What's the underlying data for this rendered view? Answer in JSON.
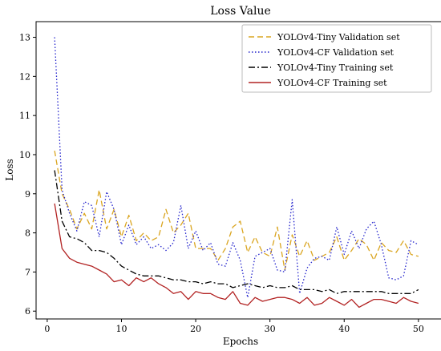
{
  "chart_data": {
    "type": "line",
    "title": "Loss Value",
    "xlabel": "Epochs",
    "ylabel": "Loss",
    "xlim": [
      -1.5,
      52.5
    ],
    "ylim": [
      5.8,
      13.4
    ],
    "xticks": [
      0,
      10,
      20,
      30,
      40,
      50
    ],
    "yticks": [
      6,
      7,
      8,
      9,
      10,
      11,
      12,
      13
    ],
    "grid": false,
    "legend_position": "top-right",
    "x": [
      1,
      2,
      3,
      4,
      5,
      6,
      7,
      8,
      9,
      10,
      11,
      12,
      13,
      14,
      15,
      16,
      17,
      18,
      19,
      20,
      21,
      22,
      23,
      24,
      25,
      26,
      27,
      28,
      29,
      30,
      31,
      32,
      33,
      34,
      35,
      36,
      37,
      38,
      39,
      40,
      41,
      42,
      43,
      44,
      45,
      46,
      47,
      48,
      49,
      50
    ],
    "series": [
      {
        "name": "YOLOv4-Tiny Validation set",
        "color": "#DAA520",
        "style": "dashed",
        "values": [
          10.1,
          9.0,
          8.6,
          8.1,
          8.5,
          8.1,
          9.1,
          8.1,
          8.6,
          7.9,
          8.45,
          7.8,
          8.0,
          7.8,
          7.9,
          8.6,
          8.0,
          8.2,
          8.5,
          7.6,
          7.6,
          7.6,
          7.3,
          7.6,
          8.15,
          8.3,
          7.5,
          7.9,
          7.5,
          7.4,
          8.15,
          7.05,
          7.95,
          7.4,
          7.8,
          7.3,
          7.4,
          7.5,
          7.9,
          7.3,
          7.55,
          7.85,
          7.7,
          7.3,
          7.75,
          7.55,
          7.5,
          7.8,
          7.45,
          7.4
        ]
      },
      {
        "name": "YOLOv4-CF Validation set",
        "color": "#2222CC",
        "style": "dotted",
        "values": [
          13.0,
          9.1,
          8.5,
          8.05,
          8.8,
          8.7,
          7.9,
          9.05,
          8.6,
          7.7,
          8.2,
          7.7,
          7.9,
          7.6,
          7.7,
          7.55,
          7.75,
          8.7,
          7.6,
          8.05,
          7.55,
          7.75,
          7.2,
          7.15,
          7.75,
          7.3,
          6.35,
          7.4,
          7.5,
          7.6,
          7.05,
          7.0,
          8.85,
          6.45,
          7.1,
          7.35,
          7.4,
          7.3,
          8.15,
          7.45,
          8.05,
          7.6,
          8.1,
          8.3,
          7.7,
          6.85,
          6.8,
          6.9,
          7.8,
          7.7
        ]
      },
      {
        "name": "YOLOv4-Tiny Training set",
        "color": "#000000",
        "style": "dashdot",
        "values": [
          9.6,
          8.3,
          7.9,
          7.85,
          7.75,
          7.55,
          7.55,
          7.5,
          7.35,
          7.15,
          7.05,
          6.95,
          6.9,
          6.9,
          6.9,
          6.85,
          6.8,
          6.8,
          6.75,
          6.75,
          6.7,
          6.75,
          6.7,
          6.7,
          6.6,
          6.65,
          6.7,
          6.65,
          6.6,
          6.65,
          6.6,
          6.6,
          6.65,
          6.55,
          6.55,
          6.55,
          6.5,
          6.55,
          6.45,
          6.5,
          6.5,
          6.5,
          6.5,
          6.5,
          6.5,
          6.45,
          6.45,
          6.45,
          6.45,
          6.55
        ]
      },
      {
        "name": "YOLOv4-CF Training set",
        "color": "#B22222",
        "style": "solid",
        "values": [
          8.75,
          7.6,
          7.35,
          7.25,
          7.2,
          7.15,
          7.05,
          6.95,
          6.75,
          6.8,
          6.65,
          6.85,
          6.75,
          6.85,
          6.7,
          6.6,
          6.45,
          6.5,
          6.3,
          6.5,
          6.45,
          6.45,
          6.35,
          6.3,
          6.5,
          6.2,
          6.15,
          6.35,
          6.25,
          6.3,
          6.35,
          6.35,
          6.3,
          6.2,
          6.35,
          6.15,
          6.2,
          6.35,
          6.25,
          6.15,
          6.3,
          6.1,
          6.2,
          6.3,
          6.3,
          6.25,
          6.2,
          6.35,
          6.25,
          6.2
        ]
      }
    ]
  }
}
